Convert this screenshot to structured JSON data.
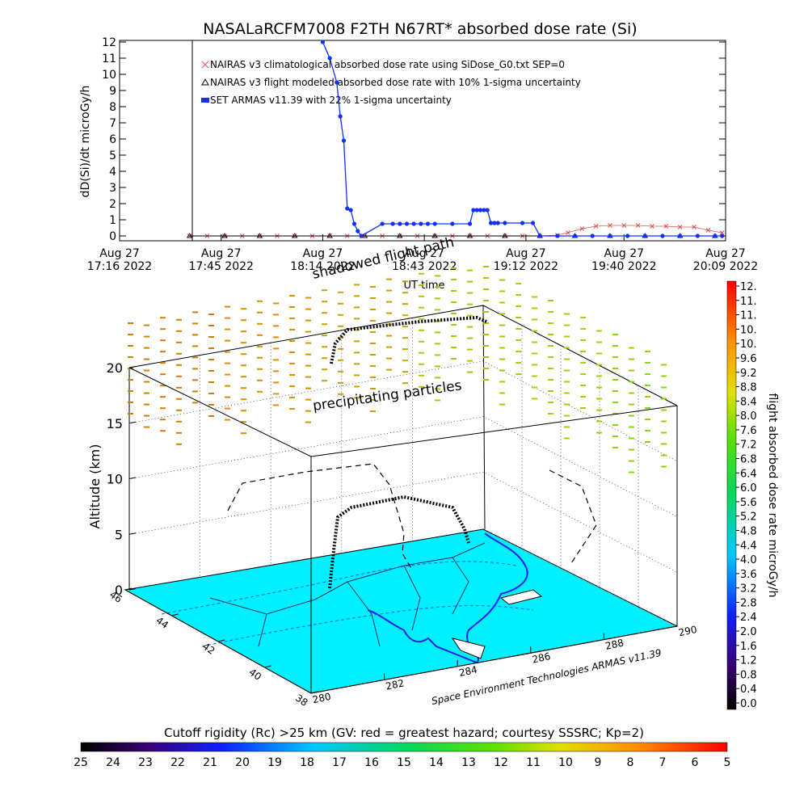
{
  "chart_data": [
    {
      "type": "line",
      "title": "NASALaRCFM7008  F2TH N67RT* absorbed dose rate (Si)",
      "xlabel": "UT time",
      "ylabel": "dD(Si)/dt microGy/h",
      "ylim": [
        0,
        12
      ],
      "yticks": [
        "0",
        "1",
        "2",
        "3",
        "4",
        "5",
        "6",
        "7",
        "8",
        "9",
        "10",
        "11",
        "12"
      ],
      "xlim_minutes": [
        0,
        173
      ],
      "xticks": [
        {
          "top": "Aug 27",
          "bottom": "17:16 2022",
          "t": 0
        },
        {
          "top": "Aug 27",
          "bottom": "17:45 2022",
          "t": 29
        },
        {
          "top": "Aug 27",
          "bottom": "18:14 2022",
          "t": 58
        },
        {
          "top": "Aug 27",
          "bottom": "18:43 2022",
          "t": 87
        },
        {
          "top": "Aug 27",
          "bottom": "19:12 2022",
          "t": 116
        },
        {
          "top": "Aug 27",
          "bottom": "19:40 2022",
          "t": 144
        },
        {
          "top": "Aug 27",
          "bottom": "20:09 2022",
          "t": 173
        }
      ],
      "legend_position": "top-left",
      "series": [
        {
          "name": "NAIRAS v3 climatological absorbed dose rate using SiDose_G0.txt SEP=0",
          "color": "#e05050",
          "marker": "x",
          "x": [
            20,
            25,
            30,
            35,
            40,
            45,
            50,
            55,
            60,
            65,
            70,
            75,
            80,
            85,
            90,
            95,
            100,
            105,
            110,
            115,
            120,
            125,
            128,
            132,
            136,
            140,
            144,
            148,
            152,
            156,
            160,
            164,
            168,
            172
          ],
          "y": [
            0,
            0,
            0,
            0,
            0,
            0,
            0,
            0,
            0,
            0,
            0,
            0,
            0,
            0,
            0,
            0,
            0,
            0,
            0,
            0,
            0,
            0.05,
            0.2,
            0.45,
            0.6,
            0.65,
            0.65,
            0.65,
            0.6,
            0.6,
            0.55,
            0.55,
            0.35,
            0.2
          ]
        },
        {
          "name": "NAIRAS v3 flight modeled absorbed dose rate with 10% 1-sigma uncertainty",
          "color": "#000000",
          "marker": "triangle",
          "x": [
            20,
            30,
            40,
            50,
            60,
            70,
            80,
            90,
            100,
            110,
            120,
            130,
            140,
            150,
            160,
            170
          ],
          "y": [
            0,
            0,
            0,
            0,
            0,
            0,
            0,
            0,
            0,
            0,
            0,
            0,
            0,
            0,
            0,
            0
          ]
        },
        {
          "name": "SET ARMAS v11.39 with 22% 1-sigma uncertainty",
          "color": "#1030ff",
          "marker": "dot",
          "x": [
            58,
            60,
            62,
            63,
            64,
            65,
            66,
            67,
            68,
            69,
            75,
            78,
            80,
            82,
            84,
            86,
            88,
            90,
            95,
            100,
            101,
            102,
            103,
            104,
            105,
            106,
            107,
            108,
            110,
            115,
            118,
            120,
            125,
            130,
            135,
            140,
            145,
            150,
            155,
            160,
            165,
            170,
            172
          ],
          "y": [
            12,
            11.0,
            9.5,
            7.4,
            5.9,
            1.7,
            1.6,
            0.75,
            0.3,
            0.0,
            0.75,
            0.75,
            0.75,
            0.75,
            0.75,
            0.75,
            0.75,
            0.75,
            0.75,
            0.75,
            1.6,
            1.6,
            1.6,
            1.6,
            1.6,
            0.8,
            0.8,
            0.8,
            0.8,
            0.8,
            0.8,
            0.0,
            0.0,
            0.0,
            0.0,
            0.0,
            0.0,
            0.0,
            0.0,
            0.0,
            0.0,
            0.0,
            0.0
          ]
        }
      ]
    },
    {
      "type": "scatter",
      "title": "",
      "zlabel": "Altitude (km)",
      "zticks": [
        "0",
        "5",
        "10",
        "15",
        "20"
      ],
      "lat_ticks": [
        "46",
        "44",
        "42",
        "40",
        "38"
      ],
      "lon_ticks": [
        "280",
        "282",
        "284",
        "286",
        "288",
        "290"
      ],
      "annotations": [
        "precipitating particles",
        "shadowed flight path"
      ],
      "credit": "Space Environment Technologies ARMAS v11.39"
    }
  ],
  "colorbar_right": {
    "label": "flight absorbed dose rate microGy/h",
    "ticks": [
      "12.",
      "11.",
      "11.",
      "10.",
      "10.",
      "9.6",
      "9.2",
      "8.8",
      "8.4",
      "8.0",
      "7.6",
      "7.2",
      "6.8",
      "6.4",
      "6.0",
      "5.6",
      "5.2",
      "4.8",
      "4.4",
      "4.0",
      "3.6",
      "3.2",
      "2.8",
      "2.4",
      "2.0",
      "1.6",
      "1.2",
      "0.8",
      "0.4",
      "0.0"
    ]
  },
  "colorbar_bottom": {
    "title": "Cutoff rigidity (Rc) >25 km (GV: red = greatest hazard; courtesy SSSRC; Kp=2)",
    "ticks": [
      "25",
      "24",
      "23",
      "22",
      "21",
      "20",
      "19",
      "18",
      "17",
      "16",
      "15",
      "14",
      "13",
      "12",
      "11",
      "10",
      "9",
      "8",
      "7",
      "6",
      "5"
    ]
  },
  "colors": {
    "map": "#00f0ff",
    "series_nairas_clim": "#e05050",
    "series_armas": "#1030ff"
  }
}
